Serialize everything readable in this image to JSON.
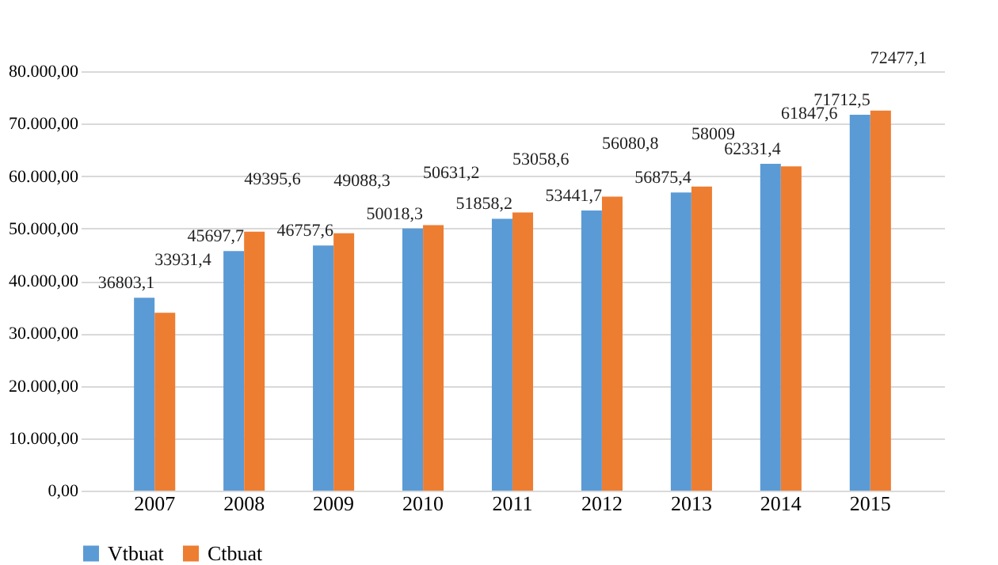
{
  "chart_data": {
    "type": "bar",
    "categories": [
      "2007",
      "2008",
      "2009",
      "2010",
      "2011",
      "2012",
      "2013",
      "2014",
      "2015"
    ],
    "series": [
      {
        "name": "Vtbuat",
        "color": "#5b9bd5",
        "values": [
          36803.1,
          45697.7,
          46757.6,
          50018.3,
          51858.2,
          53441.7,
          56875.4,
          62331.4,
          71712.5
        ],
        "value_labels": [
          "36803,1",
          "45697,7",
          "46757,6",
          "50018,3",
          "51858,2",
          "53441,7",
          "56875,4",
          "62331,4",
          "71712,5"
        ]
      },
      {
        "name": "Ctbuat",
        "color": "#ed7d31",
        "values": [
          33931.4,
          49395.6,
          49088.3,
          50631.2,
          53058.6,
          56080.8,
          58009,
          61847.6,
          72477.1
        ],
        "value_labels": [
          "33931,4",
          "49395,6",
          "49088,3",
          "50631,2",
          "53058,6",
          "56080,8",
          "58009",
          "61847,6",
          "72477,1"
        ]
      }
    ],
    "ylim": [
      0,
      80000
    ],
    "yticks": [
      {
        "value": 0,
        "label": "0,00"
      },
      {
        "value": 10000,
        "label": "10.000,00"
      },
      {
        "value": 20000,
        "label": "20.000,00"
      },
      {
        "value": 30000,
        "label": "30.000,00"
      },
      {
        "value": 40000,
        "label": "40.000,00"
      },
      {
        "value": 50000,
        "label": "50.000,00"
      },
      {
        "value": 60000,
        "label": "60.000,00"
      },
      {
        "value": 70000,
        "label": "70.000,00"
      },
      {
        "value": 80000,
        "label": "80.000,00"
      }
    ],
    "grid": "y",
    "legend": "bottom"
  }
}
